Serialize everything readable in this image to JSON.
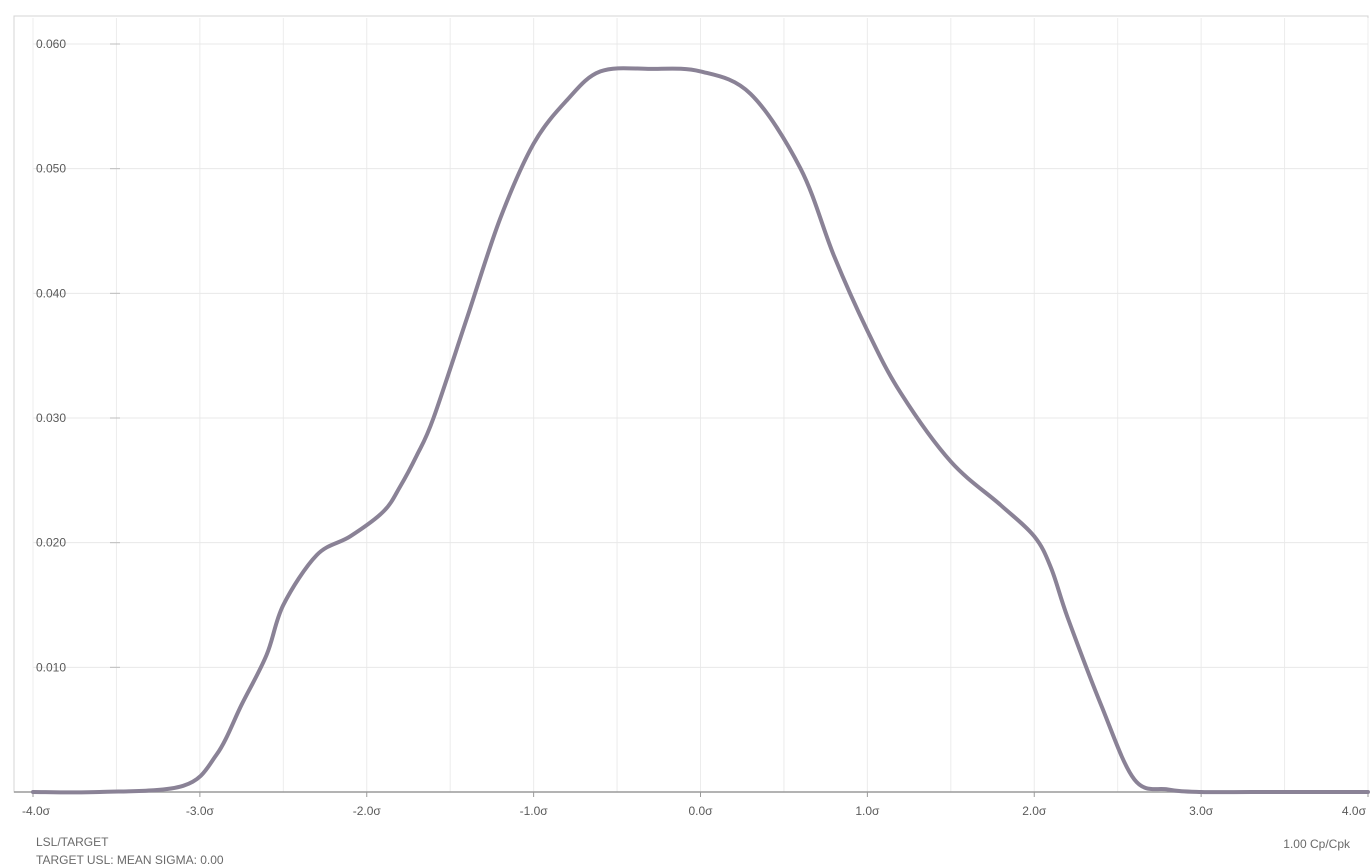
{
  "chart_data": {
    "type": "line",
    "title": "",
    "xlabel": "",
    "ylabel": "",
    "x": [
      -4.0,
      -3.6,
      -3.1,
      -2.9,
      -2.75,
      -2.6,
      -2.5,
      -2.3,
      -2.1,
      -1.9,
      -1.8,
      -1.7,
      -1.6,
      -1.4,
      -1.2,
      -1.0,
      -0.8,
      -0.6,
      -0.3,
      0.0,
      0.3,
      0.6,
      0.8,
      1.0,
      1.2,
      1.5,
      1.8,
      2.0,
      2.1,
      2.2,
      2.4,
      2.6,
      2.8,
      3.0,
      3.3,
      3.6,
      4.0
    ],
    "y": [
      0.0,
      0.0,
      0.0005,
      0.003,
      0.007,
      0.011,
      0.015,
      0.019,
      0.0205,
      0.0225,
      0.0245,
      0.027,
      0.03,
      0.038,
      0.046,
      0.052,
      0.0555,
      0.0578,
      0.058,
      0.0578,
      0.056,
      0.05,
      0.043,
      0.037,
      0.032,
      0.0265,
      0.023,
      0.0205,
      0.018,
      0.014,
      0.007,
      0.001,
      0.0002,
      0.0,
      0.0,
      0.0,
      0.0
    ],
    "xlim": [
      -4.0,
      4.0
    ],
    "ylim": [
      0,
      0.06
    ],
    "x_ticks": [
      -4.0,
      -3.0,
      -2.0,
      -1.0,
      0.0,
      1.0,
      2.0,
      3.0,
      4.0
    ],
    "x_tick_labels": [
      "-4.0σ",
      "-3.0σ",
      "-2.0σ",
      "-1.0σ",
      "0.0σ",
      "1.0σ",
      "2.0σ",
      "3.0σ",
      "4.0σ"
    ],
    "y_ticks": [
      0.01,
      0.02,
      0.03,
      0.04,
      0.05,
      0.06
    ],
    "y_tick_labels": [
      "0.010",
      "0.020",
      "0.030",
      "0.040",
      "0.050",
      "0.060"
    ],
    "grid": true,
    "line_color": "#8a8296"
  },
  "footer": {
    "left_line1": "LSL/TARGET",
    "left_line2": "TARGET USL: MEAN SIGMA: 0.00",
    "right": "1.00 Cp/Cpk"
  }
}
